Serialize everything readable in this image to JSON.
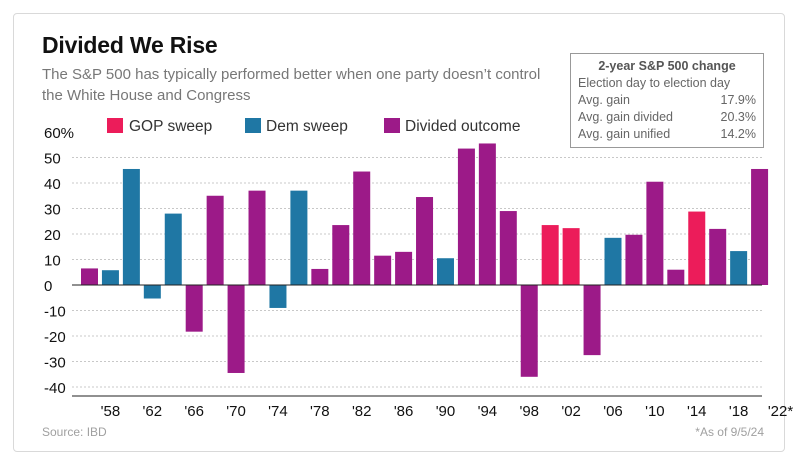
{
  "title": "Divided We Rise",
  "subtitle": "The S&P 500 has typically performed better when one party doesn’t control the White House and Congress",
  "stats_box": {
    "title": "2-year S&P 500 change",
    "subtitle": "Election day to election day",
    "rows": [
      {
        "label": "Avg. gain",
        "value": "17.9%"
      },
      {
        "label": "Avg. gain divided",
        "value": "20.3%"
      },
      {
        "label": "Avg. gain unified",
        "value": "14.2%"
      }
    ]
  },
  "source": "Source: IBD",
  "footnote": "*As of 9/5/24",
  "colors": {
    "gop": "#ec1c5a",
    "dem": "#1f77a4",
    "divided": "#9c1a88",
    "grid": "#c8c8c8",
    "axis": "#222222"
  },
  "chart_data": {
    "type": "bar",
    "ylim": [
      -40,
      60
    ],
    "y_ticks": [
      {
        "value": 60,
        "label": "60%"
      },
      {
        "value": 50,
        "label": "50"
      },
      {
        "value": 40,
        "label": "40"
      },
      {
        "value": 30,
        "label": "30"
      },
      {
        "value": 20,
        "label": "20"
      },
      {
        "value": 10,
        "label": "10"
      },
      {
        "value": 0,
        "label": "0"
      },
      {
        "value": -10,
        "label": "-10"
      },
      {
        "value": -20,
        "label": "-20"
      },
      {
        "value": -30,
        "label": "-30"
      },
      {
        "value": -40,
        "label": "-40"
      }
    ],
    "x_tick_labels": [
      "'58",
      "'62",
      "'66",
      "'70",
      "'74",
      "'78",
      "'82",
      "'86",
      "'90",
      "'94",
      "'98",
      "'02",
      "'06",
      "'10",
      "'14",
      "'18",
      "'22*"
    ],
    "legend": [
      {
        "key": "gop",
        "label": "GOP sweep"
      },
      {
        "key": "dem",
        "label": "Dem sweep"
      },
      {
        "key": "divided",
        "label": "Divided outcome"
      }
    ],
    "bars": [
      {
        "year": 1956,
        "value": 6.5,
        "type": "divided"
      },
      {
        "year": 1958,
        "value": 5.8,
        "type": "dem"
      },
      {
        "year": 1960,
        "value": 45.5,
        "type": "dem"
      },
      {
        "year": 1962,
        "value": -5.3,
        "type": "dem"
      },
      {
        "year": 1964,
        "value": 28,
        "type": "dem"
      },
      {
        "year": 1966,
        "value": -18.3,
        "type": "divided"
      },
      {
        "year": 1968,
        "value": 35,
        "type": "divided"
      },
      {
        "year": 1970,
        "value": -34.5,
        "type": "divided"
      },
      {
        "year": 1972,
        "value": 37,
        "type": "divided"
      },
      {
        "year": 1974,
        "value": -9,
        "type": "dem"
      },
      {
        "year": 1976,
        "value": 37,
        "type": "dem"
      },
      {
        "year": 1978,
        "value": 6.3,
        "type": "divided"
      },
      {
        "year": 1980,
        "value": 23.5,
        "type": "divided"
      },
      {
        "year": 1982,
        "value": 44.5,
        "type": "divided"
      },
      {
        "year": 1984,
        "value": 11.5,
        "type": "divided"
      },
      {
        "year": 1986,
        "value": 13,
        "type": "divided"
      },
      {
        "year": 1988,
        "value": 34.5,
        "type": "divided"
      },
      {
        "year": 1990,
        "value": 10.5,
        "type": "dem"
      },
      {
        "year": 1992,
        "value": 53.5,
        "type": "divided"
      },
      {
        "year": 1994,
        "value": 55.5,
        "type": "divided"
      },
      {
        "year": 1996,
        "value": 29,
        "type": "divided"
      },
      {
        "year": 1998,
        "value": -36,
        "type": "divided"
      },
      {
        "year": 2000,
        "value": 23.5,
        "type": "gop"
      },
      {
        "year": 2002,
        "value": 22.3,
        "type": "gop"
      },
      {
        "year": 2004,
        "value": -27.5,
        "type": "divided"
      },
      {
        "year": 2006,
        "value": 18.5,
        "type": "dem"
      },
      {
        "year": 2008,
        "value": 19.7,
        "type": "divided"
      },
      {
        "year": 2010,
        "value": 40.5,
        "type": "divided"
      },
      {
        "year": 2012,
        "value": 6,
        "type": "divided"
      },
      {
        "year": 2014,
        "value": 28.8,
        "type": "gop"
      },
      {
        "year": 2016,
        "value": 22,
        "type": "divided"
      },
      {
        "year": 2018,
        "value": 13.3,
        "type": "dem"
      },
      {
        "year": 2020,
        "value": 45.5,
        "type": "divided"
      }
    ]
  }
}
